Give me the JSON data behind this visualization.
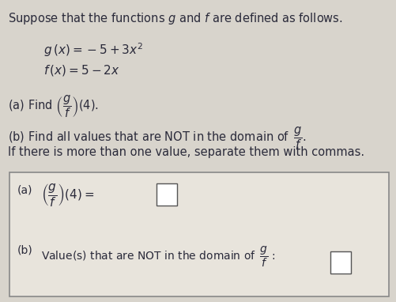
{
  "bg_color": "#d8d4cc",
  "box_bg_color": "#e8e4dc",
  "box_border_color": "#888888",
  "text_color": "#2a2a3a",
  "math_color": "#3a3a5a",
  "title_text": "Suppose that the functions $g$ and $f$ are defined as follows.",
  "g_func": "$g\\,(x)=-5+3x^2$",
  "f_func": "$f\\,(x)=5-2x$",
  "part_a_find": "(a) Find $\\left(\\dfrac{g}{f}\\right)(4).$",
  "part_b_find": "(b) Find all values that are NOT in the domain of $\\,\\dfrac{g}{f}.$",
  "part_b_sub": "If there is more than one value, separate them with commas.",
  "box_a_label": "(a)",
  "box_a_expr": "$\\left(\\dfrac{g}{f}\\right)(4) = $",
  "box_b_label": "(b)",
  "box_b_expr": "Value(s) that are NOT in the domain of $\\,\\dfrac{g}{f}\\,:$",
  "answer_box_color": "#ffffff",
  "answer_box_border": "#555555"
}
